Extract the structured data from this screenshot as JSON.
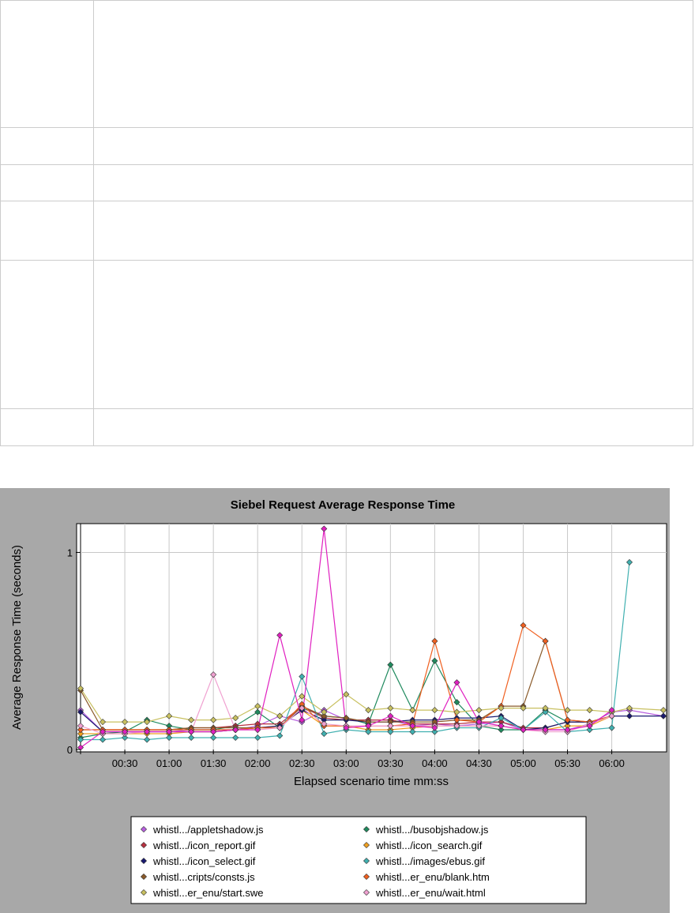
{
  "table": {
    "row_count": 6
  },
  "chart_data": {
    "type": "line",
    "title": "Siebel Request Average Response Time",
    "xlabel": "Elapsed scenario time mm:ss",
    "ylabel": "Average Response Time (seconds)",
    "xlim": [
      0,
      395
    ],
    "ylim": [
      0,
      1.13
    ],
    "x_ticks": [
      {
        "v": 30,
        "label": "00:30"
      },
      {
        "v": 60,
        "label": "01:00"
      },
      {
        "v": 90,
        "label": "01:30"
      },
      {
        "v": 120,
        "label": "02:00"
      },
      {
        "v": 150,
        "label": "02:30"
      },
      {
        "v": 180,
        "label": "03:00"
      },
      {
        "v": 210,
        "label": "03:30"
      },
      {
        "v": 240,
        "label": "04:00"
      },
      {
        "v": 270,
        "label": "04:30"
      },
      {
        "v": 300,
        "label": "05:00"
      },
      {
        "v": 330,
        "label": "05:30"
      },
      {
        "v": 360,
        "label": "06:00"
      }
    ],
    "y_ticks": [
      {
        "v": 0,
        "label": "0"
      },
      {
        "v": 1,
        "label": "1"
      }
    ],
    "grid": true,
    "legend_position": "bottom",
    "series": [
      {
        "name": "whistl.../appletshadow.js",
        "color": "#b85fe0",
        "x": [
          0,
          15,
          30,
          45,
          60,
          75,
          90,
          105,
          120,
          135,
          150,
          165,
          180,
          195,
          210,
          225,
          240,
          255,
          270,
          285,
          300,
          315,
          330,
          345,
          360,
          372,
          395
        ],
        "y": [
          0.2,
          0.09,
          0.09,
          0.09,
          0.09,
          0.1,
          0.1,
          0.1,
          0.12,
          0.17,
          0.14,
          0.2,
          0.15,
          0.15,
          0.15,
          0.12,
          0.13,
          0.12,
          0.13,
          0.14,
          0.1,
          0.1,
          0.1,
          0.13,
          0.19,
          0.2,
          0.17
        ]
      },
      {
        "name": "whistl.../busobjshadow.js",
        "color": "#1f8a5e",
        "x": [
          0,
          15,
          30,
          45,
          60,
          75,
          90,
          105,
          120,
          135,
          150,
          165,
          180,
          195,
          210,
          225,
          240,
          255,
          270,
          285,
          300,
          315,
          330,
          345,
          360
        ],
        "y": [
          0.06,
          0.08,
          0.09,
          0.15,
          0.12,
          0.1,
          0.1,
          0.12,
          0.19,
          0.11,
          0.21,
          0.17,
          0.16,
          0.13,
          0.43,
          0.2,
          0.45,
          0.24,
          0.12,
          0.1,
          0.1,
          0.2,
          0.14,
          0.14,
          0.17
        ]
      },
      {
        "name": "whistl.../icon_report.gif",
        "color": "#b83040",
        "x": [
          0,
          15,
          30,
          45,
          60,
          75,
          90,
          105,
          120,
          135,
          150,
          165,
          180,
          195,
          210,
          225,
          240,
          255,
          270,
          285,
          300,
          315,
          330,
          345,
          360
        ],
        "y": [
          0.1,
          0.1,
          0.1,
          0.1,
          0.1,
          0.11,
          0.11,
          0.12,
          0.13,
          0.13,
          0.22,
          0.16,
          0.15,
          0.15,
          0.15,
          0.13,
          0.13,
          0.13,
          0.14,
          0.14,
          0.11,
          0.11,
          0.14,
          0.14,
          0.17
        ]
      },
      {
        "name": "whistl.../icon_search.gif",
        "color": "#f0a020",
        "x": [
          0,
          15,
          30,
          45,
          60,
          75,
          90,
          105,
          120,
          135,
          150,
          165,
          180,
          195,
          210,
          225,
          240,
          255,
          270,
          285,
          300,
          315,
          330,
          345,
          360
        ],
        "y": [
          0.08,
          0.08,
          0.08,
          0.08,
          0.08,
          0.09,
          0.09,
          0.1,
          0.11,
          0.12,
          0.2,
          0.12,
          0.12,
          0.1,
          0.1,
          0.11,
          0.12,
          0.12,
          0.12,
          0.12,
          0.1,
          0.1,
          0.12,
          0.12,
          0.17
        ]
      },
      {
        "name": "whistl.../icon_select.gif",
        "color": "#1a1a70",
        "x": [
          0,
          15,
          30,
          45,
          60,
          75,
          90,
          105,
          120,
          135,
          150,
          165,
          180,
          195,
          210,
          225,
          240,
          255,
          270,
          285,
          300,
          315,
          330,
          345,
          360,
          372,
          395
        ],
        "y": [
          0.19,
          0.09,
          0.09,
          0.09,
          0.09,
          0.09,
          0.09,
          0.1,
          0.11,
          0.12,
          0.2,
          0.15,
          0.15,
          0.14,
          0.14,
          0.15,
          0.15,
          0.16,
          0.16,
          0.17,
          0.1,
          0.11,
          0.14,
          0.14,
          0.17,
          0.17,
          0.17
        ]
      },
      {
        "name": "whistl.../images/ebus.gif",
        "color": "#40b0b0",
        "x": [
          0,
          15,
          30,
          45,
          60,
          75,
          90,
          105,
          120,
          135,
          150,
          165,
          180,
          195,
          210,
          225,
          240,
          255,
          270,
          285,
          300,
          315,
          330,
          345,
          360,
          372
        ],
        "y": [
          0.05,
          0.05,
          0.06,
          0.05,
          0.06,
          0.06,
          0.06,
          0.06,
          0.06,
          0.07,
          0.37,
          0.08,
          0.1,
          0.09,
          0.09,
          0.09,
          0.09,
          0.11,
          0.11,
          0.16,
          0.1,
          0.19,
          0.09,
          0.1,
          0.11,
          0.95
        ]
      },
      {
        "name": "whistl...cripts/consts.js",
        "color": "#8a5a2a",
        "x": [
          0,
          15,
          30,
          45,
          60,
          75,
          90,
          105,
          120,
          135,
          150,
          165,
          180,
          195,
          210,
          225,
          240,
          255,
          270,
          285,
          300,
          315,
          330,
          345,
          360
        ],
        "y": [
          0.3,
          0.1,
          0.1,
          0.1,
          0.1,
          0.11,
          0.11,
          0.11,
          0.11,
          0.11,
          0.22,
          0.17,
          0.16,
          0.14,
          0.14,
          0.14,
          0.14,
          0.15,
          0.15,
          0.22,
          0.22,
          0.55,
          0.15,
          0.14,
          0.17
        ]
      },
      {
        "name": "whistl...er_enu/blank.htm",
        "color": "#f06020",
        "x": [
          0,
          15,
          30,
          45,
          60,
          75,
          90,
          105,
          120,
          135,
          150,
          165,
          180,
          195,
          210,
          225,
          240,
          255,
          270,
          285,
          300,
          315,
          330,
          345,
          360
        ],
        "y": [
          0.1,
          0.1,
          0.1,
          0.1,
          0.1,
          0.1,
          0.1,
          0.1,
          0.11,
          0.11,
          0.23,
          0.12,
          0.12,
          0.12,
          0.12,
          0.13,
          0.55,
          0.15,
          0.14,
          0.22,
          0.63,
          0.55,
          0.15,
          0.14,
          0.17
        ]
      },
      {
        "name": "whistl...er_enu/start.swe",
        "color": "#c8c060",
        "x": [
          0,
          15,
          30,
          45,
          60,
          75,
          90,
          105,
          120,
          135,
          150,
          165,
          180,
          195,
          210,
          225,
          240,
          255,
          270,
          285,
          300,
          315,
          330,
          345,
          360,
          372,
          395
        ],
        "y": [
          0.31,
          0.14,
          0.14,
          0.14,
          0.17,
          0.15,
          0.15,
          0.16,
          0.22,
          0.17,
          0.27,
          0.19,
          0.28,
          0.2,
          0.21,
          0.2,
          0.2,
          0.19,
          0.2,
          0.21,
          0.21,
          0.21,
          0.2,
          0.2,
          0.19,
          0.21,
          0.2
        ]
      },
      {
        "name": "whistl...er_enu/wait.html",
        "color": "#f0a0d0",
        "x": [
          0,
          15,
          30,
          45,
          60,
          75,
          90,
          105,
          120,
          135,
          150,
          165,
          180,
          195,
          210,
          225,
          240,
          255,
          270,
          285,
          300,
          315,
          330,
          345,
          360
        ],
        "y": [
          0.12,
          0.08,
          0.08,
          0.09,
          0.09,
          0.09,
          0.38,
          0.1,
          0.1,
          0.11,
          0.21,
          0.13,
          0.12,
          0.12,
          0.12,
          0.12,
          0.12,
          0.12,
          0.12,
          0.12,
          0.1,
          0.09,
          0.09,
          0.13,
          0.17
        ]
      },
      {
        "name": "",
        "color": "#e020c0",
        "x": [
          0,
          15,
          30,
          45,
          60,
          75,
          90,
          105,
          120,
          135,
          150,
          165,
          180,
          195,
          210,
          225,
          240,
          255,
          270,
          285,
          300,
          315,
          330,
          345,
          360
        ],
        "y": [
          0.01,
          0.09,
          0.09,
          0.09,
          0.09,
          0.09,
          0.09,
          0.1,
          0.1,
          0.58,
          0.15,
          1.12,
          0.11,
          0.12,
          0.17,
          0.12,
          0.11,
          0.34,
          0.14,
          0.12,
          0.1,
          0.1,
          0.1,
          0.12,
          0.2
        ]
      }
    ]
  }
}
